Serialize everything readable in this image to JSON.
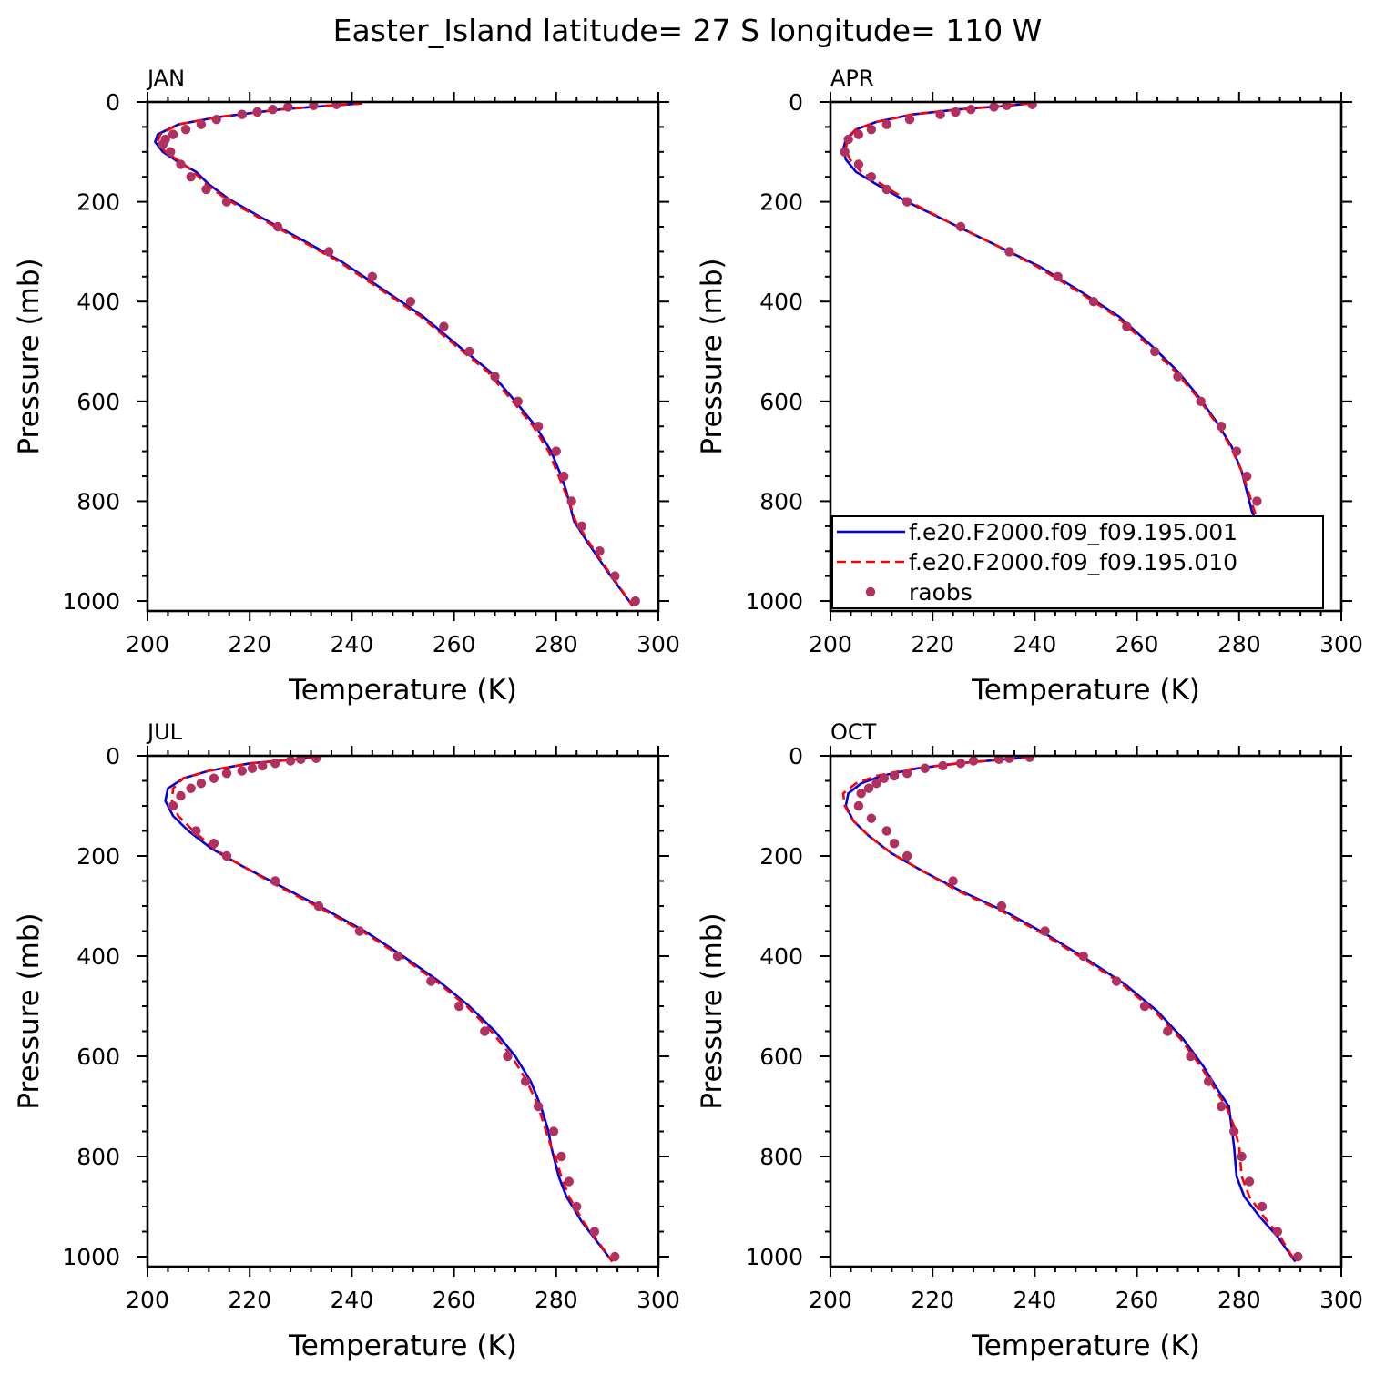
{
  "title": "Easter_Island  latitude= 27 S longitude= 110 W",
  "chart_data": [
    {
      "type": "line",
      "panel": "JAN",
      "xlabel": "Temperature (K)",
      "ylabel": "Pressure (mb)",
      "xlim": [
        200,
        300
      ],
      "ylim": [
        1020,
        0
      ],
      "y_inverted": true,
      "xticks": [
        "200",
        "220",
        "240",
        "260",
        "280",
        "300"
      ],
      "yticks": [
        "0",
        "200",
        "400",
        "600",
        "800",
        "1000"
      ],
      "series": [
        {
          "name": "f.e20.F2000.f09_f09.195.001",
          "style": "solid",
          "color": "#0000dd",
          "x": [
            242.0,
            236.0,
            226.0,
            214.0,
            206.0,
            202.0,
            201.5,
            203.0,
            206.0,
            209.5,
            212.0,
            216.0,
            222.0,
            230.0,
            238.0,
            246.0,
            254.0,
            261.0,
            267.0,
            272.0,
            276.0,
            279.0,
            281.0,
            282.0,
            282.5,
            283.5,
            286.0,
            290.0,
            295.0
          ],
          "y": [
            3,
            7,
            15,
            30,
            45,
            65,
            80,
            100,
            120,
            140,
            165,
            195,
            230,
            275,
            320,
            375,
            430,
            490,
            540,
            600,
            650,
            700,
            750,
            780,
            800,
            840,
            880,
            940,
            1010
          ]
        },
        {
          "name": "f.e20.F2000.f09_f09.195.010",
          "style": "dashed",
          "color": "#ff0000",
          "x": [
            242.0,
            236.0,
            226.0,
            214.0,
            206.0,
            202.5,
            202.0,
            203.5,
            206.5,
            209.0,
            211.5,
            215.5,
            221.5,
            229.5,
            237.5,
            245.5,
            253.5,
            260.5,
            266.5,
            271.5,
            275.5,
            278.5,
            280.5,
            281.7,
            282.5,
            283.8,
            286.3,
            290.2,
            295.0
          ],
          "y": [
            3,
            7,
            15,
            30,
            45,
            65,
            80,
            100,
            120,
            140,
            165,
            195,
            230,
            275,
            320,
            375,
            430,
            490,
            540,
            600,
            650,
            700,
            750,
            780,
            800,
            840,
            880,
            940,
            1010
          ]
        },
        {
          "name": "raobs",
          "style": "markers",
          "color": "#b03060",
          "x": [
            237.0,
            232.5,
            227.5,
            224.5,
            221.5,
            218.5,
            213.5,
            210.5,
            207.5,
            205.0,
            203.5,
            203.0,
            204.5,
            206.5,
            208.5,
            211.5,
            215.5,
            225.5,
            235.5,
            244.0,
            251.5,
            258.0,
            263.0,
            268.0,
            272.5,
            276.5,
            280.0,
            281.5,
            283.0,
            285.0,
            288.5,
            291.5,
            295.5
          ],
          "y": [
            5,
            7,
            10,
            15,
            20,
            25,
            35,
            45,
            55,
            65,
            75,
            85,
            100,
            125,
            150,
            175,
            200,
            250,
            300,
            350,
            400,
            450,
            500,
            550,
            600,
            650,
            700,
            750,
            800,
            850,
            900,
            950,
            1000
          ]
        }
      ]
    },
    {
      "type": "line",
      "panel": "APR",
      "xlabel": "Temperature (K)",
      "ylabel": "Pressure (mb)",
      "xlim": [
        200,
        300
      ],
      "ylim": [
        1020,
        0
      ],
      "y_inverted": true,
      "xticks": [
        "200",
        "220",
        "240",
        "260",
        "280",
        "300"
      ],
      "yticks": [
        "0",
        "200",
        "400",
        "600",
        "800",
        "1000"
      ],
      "series": [
        {
          "name": "f.e20.F2000.f09_f09.195.001",
          "style": "solid",
          "color": "#0000dd",
          "x": [
            239.0,
            234.0,
            225.0,
            216.0,
            209.0,
            205.0,
            203.0,
            202.5,
            203.0,
            205.0,
            209.0,
            215.0,
            223.0,
            232.0,
            241.0,
            249.0,
            256.5,
            263.0,
            268.0,
            272.0,
            275.5,
            278.5,
            280.5,
            281.5,
            282.5,
            284.0,
            287.0,
            291.0,
            295.0
          ],
          "y": [
            3,
            8,
            15,
            25,
            40,
            55,
            75,
            95,
            115,
            140,
            165,
            200,
            240,
            285,
            330,
            380,
            430,
            490,
            540,
            590,
            640,
            690,
            740,
            780,
            820,
            860,
            900,
            950,
            1010
          ]
        },
        {
          "name": "f.e20.F2000.f09_f09.195.010",
          "style": "dashed",
          "color": "#ff0000",
          "x": [
            239.0,
            234.0,
            225.0,
            216.0,
            209.0,
            205.0,
            203.3,
            203.0,
            203.8,
            206.0,
            210.0,
            215.5,
            223.0,
            232.0,
            240.5,
            248.5,
            256.0,
            262.5,
            267.5,
            271.7,
            275.3,
            278.3,
            280.5,
            281.8,
            283.0,
            284.5,
            287.4,
            291.2,
            295.0
          ],
          "y": [
            3,
            8,
            15,
            25,
            40,
            55,
            75,
            95,
            115,
            140,
            165,
            200,
            240,
            285,
            330,
            380,
            430,
            490,
            540,
            590,
            640,
            690,
            740,
            780,
            820,
            860,
            900,
            950,
            1010
          ]
        },
        {
          "name": "raobs",
          "style": "markers",
          "color": "#b03060",
          "x": [
            239.5,
            234.5,
            232.0,
            227.5,
            224.5,
            221.5,
            215.5,
            211.0,
            208.0,
            205.5,
            203.5,
            202.8,
            205.5,
            208.0,
            211.0,
            215.0,
            225.5,
            235.0,
            244.5,
            251.5,
            258.0,
            263.5,
            268.0,
            272.5,
            276.5,
            279.5,
            281.5,
            283.5,
            285.0,
            287.5,
            290.5,
            295.0
          ],
          "y": [
            5,
            7,
            10,
            15,
            20,
            25,
            35,
            45,
            55,
            65,
            75,
            100,
            125,
            150,
            175,
            200,
            250,
            300,
            350,
            400,
            450,
            500,
            550,
            600,
            650,
            700,
            750,
            800,
            850,
            900,
            950,
            1000
          ]
        }
      ]
    },
    {
      "type": "line",
      "panel": "JUL",
      "xlabel": "Temperature (K)",
      "ylabel": "Pressure (mb)",
      "xlim": [
        200,
        300
      ],
      "ylim": [
        1020,
        0
      ],
      "y_inverted": true,
      "xticks": [
        "200",
        "220",
        "240",
        "260",
        "280",
        "300"
      ],
      "yticks": [
        "0",
        "200",
        "400",
        "600",
        "800",
        "1000"
      ],
      "series": [
        {
          "name": "f.e20.F2000.f09_f09.195.001",
          "style": "solid",
          "color": "#0000dd",
          "x": [
            233.0,
            228.0,
            220.0,
            212.0,
            207.0,
            204.0,
            203.5,
            205.0,
            208.0,
            212.5,
            218.5,
            226.0,
            234.5,
            242.5,
            250.0,
            257.0,
            263.0,
            268.0,
            272.0,
            275.0,
            277.0,
            278.5,
            279.0,
            279.5,
            280.5,
            282.0,
            285.0,
            288.0,
            291.0
          ],
          "y": [
            3,
            8,
            15,
            30,
            45,
            65,
            90,
            120,
            150,
            185,
            220,
            260,
            305,
            350,
            400,
            450,
            500,
            550,
            600,
            650,
            700,
            750,
            780,
            800,
            840,
            880,
            930,
            970,
            1010
          ]
        },
        {
          "name": "f.e20.F2000.f09_f09.195.010",
          "style": "dashed",
          "color": "#ff0000",
          "x": [
            233.0,
            228.0,
            220.0,
            212.0,
            207.0,
            205.0,
            204.8,
            206.0,
            209.0,
            213.0,
            218.5,
            225.5,
            234.0,
            242.0,
            249.5,
            256.5,
            262.5,
            267.3,
            271.3,
            274.3,
            276.5,
            278.0,
            279.0,
            279.8,
            281.0,
            282.5,
            285.3,
            288.2,
            291.0
          ],
          "y": [
            3,
            8,
            15,
            30,
            45,
            65,
            90,
            120,
            150,
            185,
            220,
            260,
            305,
            350,
            400,
            450,
            500,
            550,
            600,
            650,
            700,
            750,
            780,
            800,
            840,
            880,
            930,
            970,
            1010
          ]
        },
        {
          "name": "raobs",
          "style": "markers",
          "color": "#b03060",
          "x": [
            233.0,
            230.0,
            228.0,
            225.0,
            222.5,
            220.5,
            218.5,
            215.5,
            213.0,
            210.5,
            208.5,
            206.5,
            205.0,
            209.5,
            213.0,
            215.5,
            225.0,
            233.5,
            241.5,
            249.0,
            255.5,
            261.0,
            266.0,
            270.5,
            274.0,
            276.5,
            279.5,
            281.0,
            282.5,
            284.0,
            287.5,
            291.5
          ],
          "y": [
            5,
            7,
            10,
            15,
            20,
            25,
            30,
            35,
            45,
            55,
            65,
            80,
            100,
            150,
            175,
            200,
            250,
            300,
            350,
            400,
            450,
            500,
            550,
            600,
            650,
            700,
            750,
            800,
            850,
            900,
            950,
            1000
          ]
        }
      ]
    },
    {
      "type": "line",
      "panel": "OCT",
      "xlabel": "Temperature (K)",
      "ylabel": "Pressure (mb)",
      "xlim": [
        200,
        300
      ],
      "ylim": [
        1020,
        0
      ],
      "y_inverted": true,
      "xticks": [
        "200",
        "220",
        "240",
        "260",
        "280",
        "300"
      ],
      "yticks": [
        "0",
        "200",
        "400",
        "600",
        "800",
        "1000"
      ],
      "series": [
        {
          "name": "f.e20.F2000.f09_f09.195.001",
          "style": "solid",
          "color": "#0000dd",
          "x": [
            239.0,
            234.0,
            225.0,
            217.0,
            210.0,
            206.0,
            203.5,
            203.0,
            204.5,
            207.5,
            212.0,
            218.0,
            225.5,
            234.0,
            242.0,
            250.0,
            257.5,
            264.0,
            269.0,
            273.0,
            276.0,
            278.0,
            278.5,
            279.0,
            279.5,
            281.0,
            284.0,
            287.5,
            291.0
          ],
          "y": [
            3,
            7,
            15,
            25,
            40,
            55,
            75,
            100,
            130,
            160,
            195,
            230,
            270,
            310,
            355,
            405,
            455,
            510,
            565,
            620,
            670,
            700,
            740,
            780,
            840,
            880,
            920,
            960,
            1010
          ]
        },
        {
          "name": "f.e20.F2000.f09_f09.195.010",
          "style": "dashed",
          "color": "#ff0000",
          "x": [
            239.0,
            234.0,
            225.0,
            216.5,
            209.0,
            205.0,
            202.5,
            202.8,
            204.5,
            207.5,
            212.0,
            218.0,
            225.0,
            233.5,
            241.5,
            249.5,
            257.0,
            263.5,
            268.5,
            272.5,
            275.5,
            277.5,
            279.0,
            280.0,
            280.5,
            282.0,
            284.8,
            288.0,
            291.0
          ],
          "y": [
            3,
            7,
            15,
            25,
            40,
            55,
            75,
            100,
            130,
            160,
            195,
            230,
            270,
            310,
            355,
            405,
            455,
            510,
            565,
            620,
            670,
            700,
            740,
            780,
            840,
            880,
            920,
            960,
            1010
          ]
        },
        {
          "name": "raobs",
          "style": "markers",
          "color": "#b03060",
          "x": [
            239.0,
            235.0,
            233.0,
            228.0,
            225.5,
            222.0,
            218.5,
            215.0,
            212.5,
            210.5,
            209.0,
            207.5,
            206.0,
            205.5,
            208.0,
            211.0,
            212.5,
            215.0,
            224.0,
            233.5,
            242.0,
            249.5,
            256.0,
            261.5,
            266.0,
            270.5,
            274.0,
            276.5,
            279.0,
            280.5,
            282.0,
            284.5,
            287.5,
            291.5
          ],
          "y": [
            3,
            5,
            7,
            10,
            15,
            20,
            25,
            35,
            40,
            45,
            55,
            65,
            75,
            100,
            125,
            150,
            175,
            200,
            250,
            300,
            350,
            400,
            450,
            500,
            550,
            600,
            650,
            700,
            750,
            800,
            850,
            900,
            950,
            1000
          ]
        }
      ]
    }
  ]
}
